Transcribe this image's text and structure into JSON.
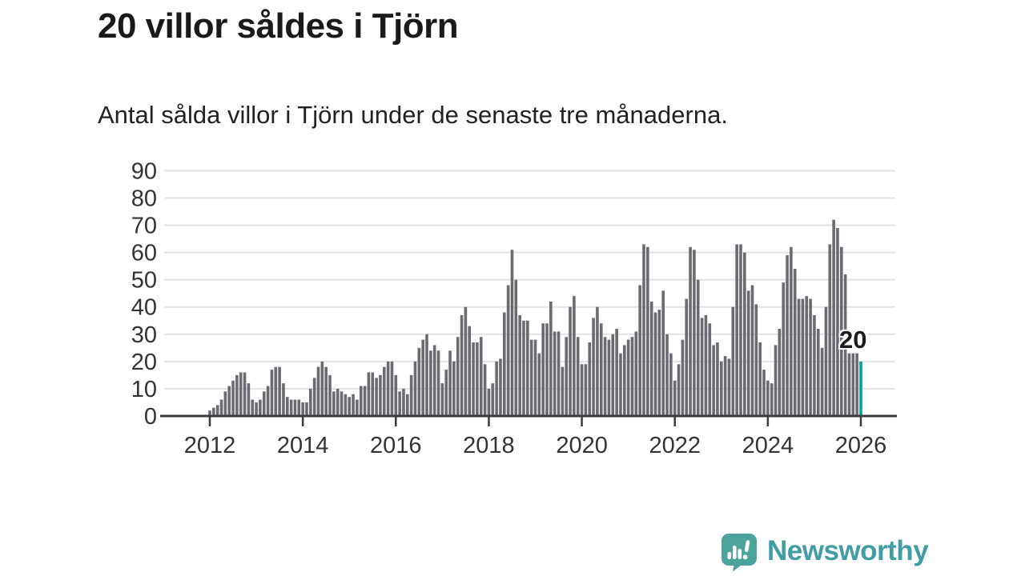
{
  "header": {
    "title": "20 villor såldes i Tjörn",
    "subtitle": "Antal sålda villor i Tjörn under de senaste tre månaderna."
  },
  "chart_data": {
    "type": "bar",
    "title": "20 villor såldes i Tjörn",
    "subtitle": "Antal sålda villor i Tjörn under de senaste tre månaderna.",
    "frequency": "monthly",
    "x_start_month": "2012-01",
    "x_end_month": "2026-01",
    "values": [
      2,
      3,
      4,
      6,
      9,
      11,
      13,
      15,
      16,
      16,
      12,
      6,
      5,
      6,
      9,
      11,
      17,
      18,
      18,
      12,
      7,
      6,
      6,
      6,
      5,
      5,
      10,
      14,
      18,
      20,
      18,
      15,
      9,
      10,
      9,
      8,
      7,
      8,
      6,
      11,
      11,
      16,
      16,
      14,
      15,
      18,
      20,
      20,
      15,
      9,
      10,
      8,
      15,
      20,
      25,
      28,
      30,
      24,
      26,
      24,
      12,
      17,
      24,
      20,
      29,
      37,
      40,
      33,
      27,
      27,
      29,
      19,
      10,
      12,
      20,
      21,
      38,
      48,
      61,
      50,
      37,
      35,
      35,
      28,
      28,
      23,
      34,
      34,
      42,
      31,
      31,
      18,
      29,
      40,
      44,
      29,
      19,
      19,
      27,
      36,
      40,
      34,
      29,
      28,
      30,
      32,
      23,
      26,
      28,
      29,
      31,
      48,
      63,
      62,
      42,
      38,
      39,
      46,
      30,
      23,
      13,
      19,
      28,
      43,
      62,
      61,
      50,
      36,
      37,
      34,
      26,
      27,
      20,
      22,
      21,
      40,
      63,
      63,
      60,
      46,
      48,
      41,
      27,
      17,
      13,
      12,
      26,
      32,
      49,
      59,
      62,
      54,
      43,
      43,
      44,
      43,
      37,
      32,
      25,
      40,
      63,
      72,
      69,
      62,
      52,
      23,
      23,
      23,
      20
    ],
    "highlight_last": {
      "label": "20",
      "value": 20
    },
    "ylim": [
      0,
      90
    ],
    "yticks": [
      0,
      10,
      20,
      30,
      40,
      50,
      60,
      70,
      80,
      90
    ],
    "xtick_years": [
      2012,
      2014,
      2016,
      2018,
      2020,
      2022,
      2024,
      2026
    ],
    "grid": true,
    "legend": "none",
    "colors": {
      "bar": "#6a6a71",
      "highlight": "#00a0a0",
      "grid": "#e3e3e3",
      "axis": "#3b3b3b",
      "tick_text": "#333333"
    }
  },
  "branding": {
    "name": "Newsworthy",
    "icon": "speech-bubble-bar-chart-icon",
    "icon_color": "#4ba39c",
    "text_color": "#3f9da3"
  }
}
